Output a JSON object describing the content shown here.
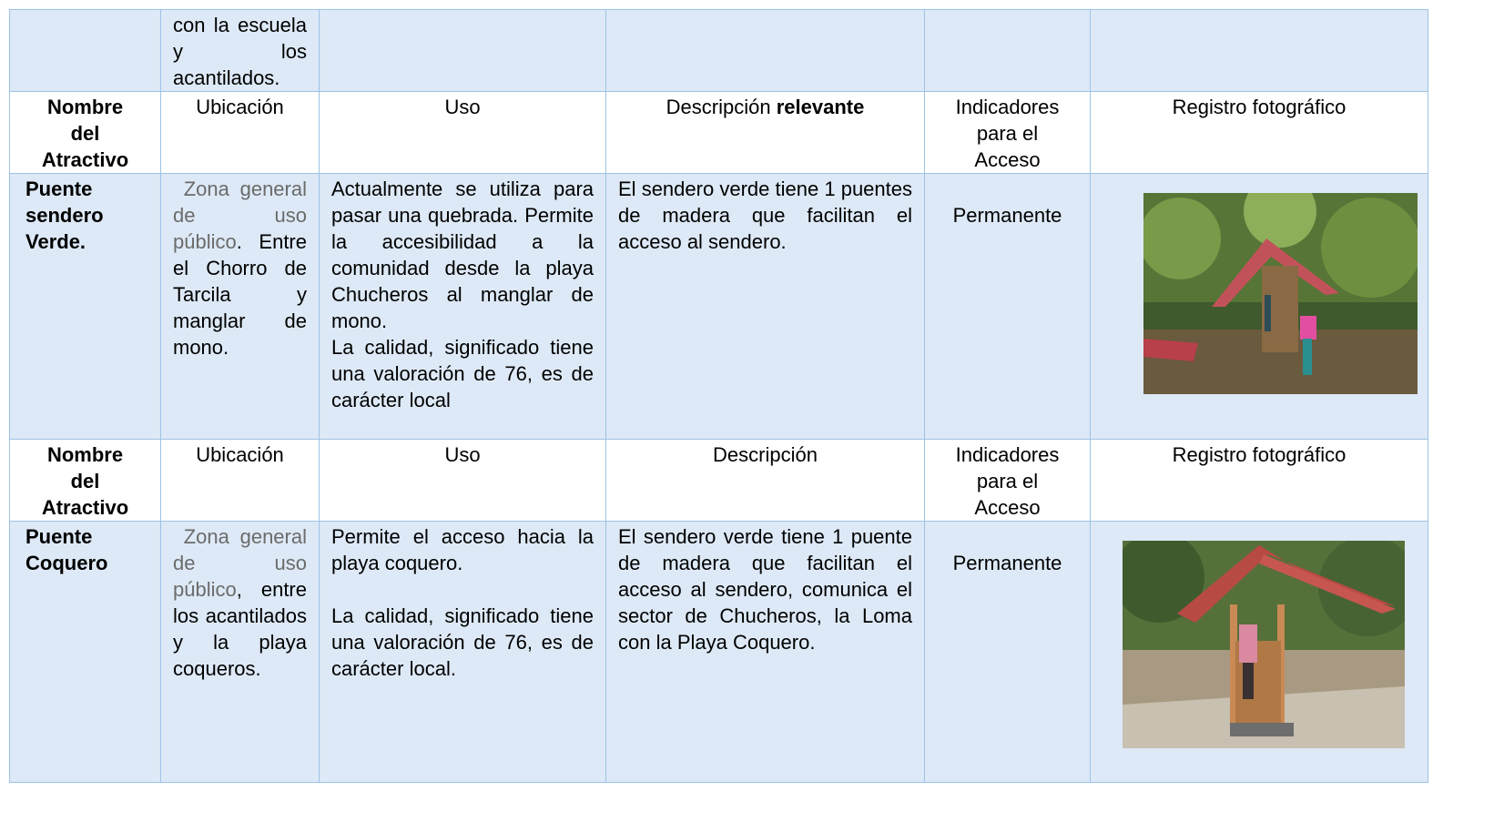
{
  "continuation": {
    "ubicacion": "con la escuela y los acantilados."
  },
  "sections": [
    {
      "header": {
        "nombre": "Nombre del Atractivo",
        "ubicacion": "Ubicación",
        "uso": "Uso",
        "descripcion": [
          "Descripción",
          "relevante"
        ],
        "indicadores": "Indicadores para el Acceso",
        "registro": "Registro fotográfico"
      },
      "row": {
        "nombre": "Puente sendero Verde.",
        "ubicacion": {
          "zona": "Zona general de uso público",
          "detalle": ". Entre el Chorro de Tarcila y manglar de mono."
        },
        "uso": [
          "Actualmente se utiliza para pasar una quebrada. Permite la accesibilidad a la comunidad desde la playa Chucheros al manglar de mono.",
          "La calidad, significado tiene una valoración de 76, es de carácter local"
        ],
        "descripcion": "El sendero verde tiene 1 puentes de madera que facilitan el acceso al sendero.",
        "indicadores": "Permanente"
      }
    },
    {
      "header": {
        "nombre": "Nombre del Atractivo",
        "ubicacion": "Ubicación",
        "uso": "Uso",
        "descripcion": [
          "Descripción"
        ],
        "indicadores": "Indicadores para el Acceso",
        "registro": "Registro fotográfico"
      },
      "row": {
        "nombre": "Puente Coquero",
        "ubicacion": {
          "zona": "Zona general de uso público",
          "detalle": ", entre los acantilados y la playa coqueros."
        },
        "uso": [
          "Permite el acceso hacia la playa coquero.",
          "La calidad, significado tiene una valoración de 76, es de carácter local."
        ],
        "descripcion": "El sendero verde tiene 1 puente de madera que facilitan el acceso al sendero, comunica el sector de Chucheros, la Loma con la Playa Coquero.",
        "indicadores": "Permanente"
      }
    }
  ]
}
